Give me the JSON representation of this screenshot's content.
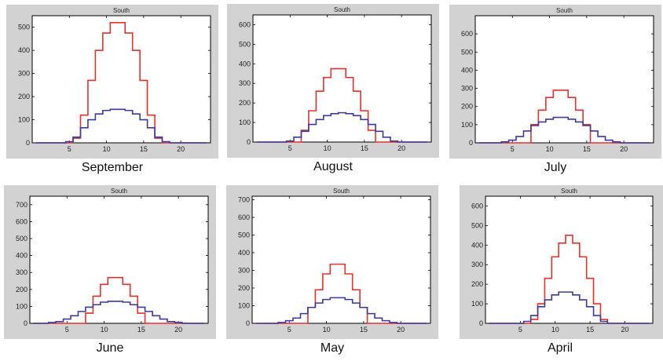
{
  "chart_data": [
    {
      "type": "line",
      "title": "South",
      "caption": "September",
      "x": [
        1,
        2,
        3,
        4,
        5,
        6,
        7,
        8,
        9,
        10,
        11,
        12,
        13,
        14,
        15,
        16,
        17,
        18,
        19,
        20,
        21,
        22,
        23
      ],
      "xlim": [
        0,
        24
      ],
      "ylim": [
        0,
        550
      ],
      "xticks": [
        5,
        10,
        15,
        20
      ],
      "yticks": [
        0,
        100,
        200,
        300,
        400,
        500
      ],
      "series": [
        {
          "color": "#e8302a",
          "values": [
            0,
            0,
            0,
            0,
            0,
            20,
            120,
            270,
            400,
            475,
            520,
            520,
            475,
            400,
            270,
            120,
            20,
            0,
            0,
            0,
            0,
            0,
            0
          ]
        },
        {
          "color": "#3a3aa0",
          "values": [
            0,
            0,
            0,
            0,
            5,
            25,
            65,
            100,
            125,
            140,
            145,
            145,
            140,
            125,
            100,
            65,
            25,
            5,
            0,
            0,
            0,
            0,
            0
          ]
        }
      ]
    },
    {
      "type": "line",
      "title": "South",
      "caption": "August",
      "x": [
        1,
        2,
        3,
        4,
        5,
        6,
        7,
        8,
        9,
        10,
        11,
        12,
        13,
        14,
        15,
        16,
        17,
        18,
        19,
        20,
        21,
        22,
        23
      ],
      "xlim": [
        0,
        24
      ],
      "ylim": [
        0,
        650
      ],
      "xticks": [
        5,
        10,
        15,
        20
      ],
      "yticks": [
        0,
        100,
        200,
        300,
        400,
        500,
        600
      ],
      "series": [
        {
          "color": "#e8302a",
          "values": [
            0,
            0,
            0,
            0,
            0,
            0,
            60,
            160,
            260,
            330,
            375,
            375,
            330,
            260,
            160,
            60,
            0,
            0,
            0,
            0,
            0,
            0,
            0
          ]
        },
        {
          "color": "#3a3aa0",
          "values": [
            0,
            0,
            0,
            0,
            5,
            25,
            55,
            90,
            115,
            135,
            145,
            150,
            145,
            135,
            115,
            90,
            55,
            25,
            5,
            0,
            0,
            0,
            0
          ]
        }
      ]
    },
    {
      "type": "line",
      "title": "South",
      "caption": "July",
      "x": [
        1,
        2,
        3,
        4,
        5,
        6,
        7,
        8,
        9,
        10,
        11,
        12,
        13,
        14,
        15,
        16,
        17,
        18,
        19,
        20,
        21,
        22,
        23
      ],
      "xlim": [
        0,
        24
      ],
      "ylim": [
        0,
        700
      ],
      "xticks": [
        5,
        10,
        15,
        20
      ],
      "yticks": [
        0,
        100,
        200,
        300,
        400,
        500,
        600
      ],
      "series": [
        {
          "color": "#e8302a",
          "values": [
            0,
            0,
            0,
            0,
            0,
            0,
            0,
            100,
            180,
            250,
            290,
            290,
            250,
            180,
            100,
            0,
            0,
            0,
            0,
            0,
            0,
            0,
            0
          ]
        },
        {
          "color": "#3a3aa0",
          "values": [
            0,
            0,
            0,
            5,
            15,
            35,
            65,
            95,
            115,
            130,
            140,
            140,
            130,
            115,
            95,
            65,
            35,
            15,
            5,
            0,
            0,
            0,
            0
          ]
        }
      ]
    },
    {
      "type": "line",
      "title": "South",
      "caption": "June",
      "x": [
        1,
        2,
        3,
        4,
        5,
        6,
        7,
        8,
        9,
        10,
        11,
        12,
        13,
        14,
        15,
        16,
        17,
        18,
        19,
        20,
        21,
        22,
        23
      ],
      "xlim": [
        0,
        24
      ],
      "ylim": [
        0,
        750
      ],
      "xticks": [
        5,
        10,
        15,
        20
      ],
      "yticks": [
        0,
        100,
        200,
        300,
        400,
        500,
        600,
        700
      ],
      "series": [
        {
          "color": "#e8302a",
          "values": [
            0,
            0,
            0,
            0,
            0,
            0,
            0,
            60,
            160,
            230,
            270,
            270,
            230,
            160,
            60,
            0,
            0,
            0,
            0,
            0,
            0,
            0,
            0
          ]
        },
        {
          "color": "#3a3aa0",
          "values": [
            0,
            0,
            5,
            10,
            25,
            45,
            70,
            95,
            110,
            125,
            130,
            130,
            125,
            110,
            95,
            70,
            45,
            25,
            10,
            5,
            0,
            0,
            0
          ]
        }
      ]
    },
    {
      "type": "line",
      "title": "South",
      "caption": "May",
      "x": [
        1,
        2,
        3,
        4,
        5,
        6,
        7,
        8,
        9,
        10,
        11,
        12,
        13,
        14,
        15,
        16,
        17,
        18,
        19,
        20,
        21,
        22,
        23
      ],
      "xlim": [
        0,
        24
      ],
      "ylim": [
        0,
        720
      ],
      "xticks": [
        5,
        10,
        15,
        20
      ],
      "yticks": [
        0,
        100,
        200,
        300,
        400,
        500,
        600,
        700
      ],
      "series": [
        {
          "color": "#e8302a",
          "values": [
            0,
            0,
            0,
            0,
            0,
            0,
            0,
            90,
            190,
            280,
            335,
            335,
            280,
            190,
            90,
            0,
            0,
            0,
            0,
            0,
            0,
            0,
            0
          ]
        },
        {
          "color": "#3a3aa0",
          "values": [
            0,
            0,
            0,
            5,
            15,
            30,
            55,
            90,
            115,
            135,
            145,
            145,
            135,
            115,
            90,
            55,
            30,
            15,
            5,
            0,
            0,
            0,
            0
          ]
        }
      ]
    },
    {
      "type": "line",
      "title": "South",
      "caption": "April",
      "x": [
        1,
        2,
        3,
        4,
        5,
        6,
        7,
        8,
        9,
        10,
        11,
        12,
        13,
        14,
        15,
        16,
        17,
        18,
        19,
        20,
        21,
        22,
        23
      ],
      "xlim": [
        0,
        24
      ],
      "ylim": [
        0,
        650
      ],
      "xticks": [
        5,
        10,
        15,
        20
      ],
      "yticks": [
        0,
        100,
        200,
        300,
        400,
        500,
        600
      ],
      "series": [
        {
          "color": "#e8302a",
          "values": [
            0,
            0,
            0,
            0,
            0,
            0,
            20,
            100,
            230,
            340,
            410,
            450,
            410,
            340,
            230,
            100,
            20,
            0,
            0,
            0,
            0,
            0,
            0
          ]
        },
        {
          "color": "#3a3aa0",
          "values": [
            0,
            0,
            0,
            0,
            0,
            10,
            40,
            85,
            120,
            145,
            160,
            160,
            145,
            120,
            85,
            40,
            10,
            0,
            0,
            0,
            0,
            0,
            0
          ]
        }
      ]
    }
  ]
}
